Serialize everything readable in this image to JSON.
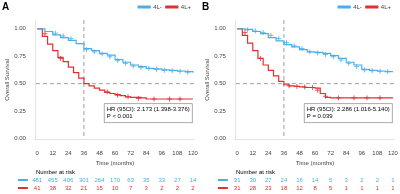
{
  "chart_data": [
    {
      "type": "step",
      "title": "A",
      "xlabel": "Time (months)",
      "ylabel": "Overall Survival",
      "xlim": [
        -1,
        121
      ],
      "ylim": [
        -0.01,
        1.08
      ],
      "xticks": [
        0,
        12,
        24,
        36,
        48,
        60,
        72,
        84,
        96,
        108,
        120
      ],
      "yticks": [
        {
          "value": 0,
          "label": "0.00"
        },
        0.25,
        {
          "value": 0.5,
          "label": "0.50"
        },
        0.75,
        {
          "value": 1,
          "label": "1.00"
        }
      ],
      "grid": false,
      "legend": "upper right",
      "hlines": [
        0.5
      ],
      "vlines": [
        36
      ],
      "annotations": [
        "HR (95CI): 2.173 (1.398-3.376)",
        "P < 0.001"
      ],
      "risk_table_title": "Number at risk",
      "series": [
        {
          "name": "4L-",
          "color": "#4baee8",
          "marker": "+",
          "x": [
            0,
            6,
            12,
            18,
            24,
            30,
            36,
            42,
            48,
            54,
            60,
            66,
            72,
            78,
            84,
            90,
            96,
            102,
            108,
            114,
            120
          ],
          "values": [
            1.0,
            0.975,
            0.945,
            0.92,
            0.895,
            0.865,
            0.82,
            0.8,
            0.775,
            0.76,
            0.72,
            0.695,
            0.67,
            0.655,
            0.64,
            0.635,
            0.625,
            0.62,
            0.615,
            0.61,
            0.6
          ],
          "censor_x": [
            14,
            20,
            26,
            38,
            44,
            50,
            56,
            62,
            68,
            74,
            80,
            86,
            92,
            98,
            104,
            110,
            116
          ],
          "censor_values": [
            0.96,
            0.935,
            0.91,
            0.81,
            0.79,
            0.77,
            0.745,
            0.71,
            0.685,
            0.66,
            0.648,
            0.638,
            0.63,
            0.622,
            0.617,
            0.612,
            0.605
          ],
          "at_risk": [
            481,
            455,
            406,
            301,
            264,
            170,
            63,
            35,
            33,
            27,
            14
          ]
        },
        {
          "name": "4L+",
          "color": "#e03030",
          "marker": "+",
          "x": [
            0,
            4,
            8,
            12,
            16,
            20,
            24,
            28,
            32,
            36,
            40,
            44,
            48,
            52,
            56,
            60,
            64,
            68,
            72,
            80,
            84,
            96,
            108,
            120
          ],
          "values": [
            1.0,
            0.93,
            0.86,
            0.8,
            0.74,
            0.7,
            0.65,
            0.6,
            0.55,
            0.5,
            0.48,
            0.46,
            0.44,
            0.42,
            0.41,
            0.4,
            0.39,
            0.38,
            0.375,
            0.37,
            0.36,
            0.36,
            0.36,
            0.36
          ],
          "censor_x": [
            6,
            18,
            54,
            62,
            70,
            78,
            90,
            102,
            110
          ],
          "censor_values": [
            0.955,
            0.73,
            0.425,
            0.395,
            0.38,
            0.365,
            0.36,
            0.36,
            0.36
          ],
          "at_risk": [
            41,
            38,
            32,
            21,
            15,
            10,
            7,
            3,
            2,
            2,
            2
          ]
        }
      ]
    },
    {
      "type": "step",
      "title": "B",
      "xlabel": "Time (months)",
      "ylabel": "Overall Survival",
      "xlim": [
        -1,
        121
      ],
      "ylim": [
        -0.01,
        1.08
      ],
      "xticks": [
        0,
        12,
        24,
        36,
        48,
        60,
        72,
        84,
        96,
        108,
        120
      ],
      "yticks": [
        {
          "value": 0,
          "label": "0.00"
        },
        0.25,
        {
          "value": 0.5,
          "label": "0.50"
        },
        0.75,
        {
          "value": 1,
          "label": "1.00"
        }
      ],
      "grid": false,
      "legend": "upper right",
      "hlines": [
        0.5
      ],
      "vlines": [
        36
      ],
      "annotations": [
        "HR (95CI): 2.286 (1.016-5.140)",
        "P = 0.039"
      ],
      "risk_table_title": "Number at risk",
      "series": [
        {
          "name": "4L-",
          "color": "#4baee8",
          "marker": "+",
          "x": [
            0,
            6,
            12,
            18,
            24,
            30,
            36,
            42,
            48,
            54,
            60,
            66,
            72,
            78,
            84,
            90,
            96,
            102,
            108,
            114,
            120
          ],
          "values": [
            1.0,
            0.995,
            0.975,
            0.955,
            0.92,
            0.89,
            0.855,
            0.835,
            0.81,
            0.79,
            0.785,
            0.775,
            0.755,
            0.73,
            0.695,
            0.67,
            0.63,
            0.62,
            0.615,
            0.61,
            0.61
          ],
          "censor_x": [
            8,
            14,
            20,
            26,
            32,
            38,
            44,
            50,
            56,
            62,
            68,
            74,
            80,
            86,
            92,
            98,
            104,
            110,
            116
          ],
          "censor_values": [
            0.99,
            0.98,
            0.965,
            0.94,
            0.91,
            0.875,
            0.845,
            0.82,
            0.79,
            0.78,
            0.765,
            0.745,
            0.715,
            0.685,
            0.655,
            0.625,
            0.617,
            0.612,
            0.61
          ],
          "at_risk": [
            31,
            30,
            27,
            24,
            16,
            14,
            5,
            3,
            2,
            2,
            1
          ]
        },
        {
          "name": "4L+",
          "color": "#e03030",
          "marker": "+",
          "x": [
            0,
            4,
            8,
            12,
            16,
            20,
            24,
            28,
            32,
            36,
            40,
            44,
            48,
            52,
            60,
            64,
            68,
            72,
            80,
            96,
            108,
            120
          ],
          "values": [
            1.0,
            0.94,
            0.87,
            0.8,
            0.73,
            0.67,
            0.62,
            0.57,
            0.52,
            0.49,
            0.48,
            0.475,
            0.47,
            0.465,
            0.46,
            0.41,
            0.375,
            0.37,
            0.37,
            0.37,
            0.37,
            0.37
          ],
          "censor_x": [
            6,
            18,
            40,
            46,
            52,
            58,
            62,
            68,
            78,
            90,
            100,
            110
          ],
          "censor_values": [
            0.965,
            0.73,
            0.48,
            0.475,
            0.47,
            0.465,
            0.44,
            0.385,
            0.37,
            0.37,
            0.37,
            0.37
          ],
          "at_risk": [
            31,
            28,
            23,
            18,
            12,
            8,
            5,
            1,
            1,
            1,
            1
          ]
        }
      ]
    }
  ]
}
